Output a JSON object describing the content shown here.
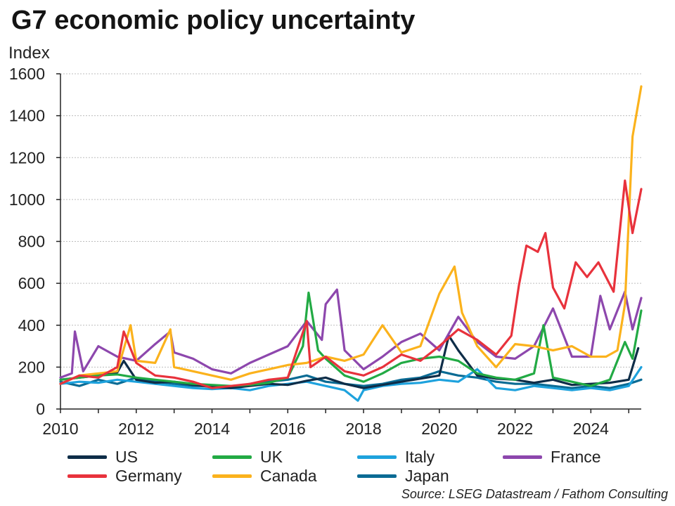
{
  "title": "G7 economic policy uncertainty",
  "source": "Source: LSEG Datastream / Fathom Consulting",
  "chart_data": {
    "type": "line",
    "title": "G7 economic policy uncertainty",
    "ylabel": "Index",
    "xlabel": "",
    "xlim": [
      2010,
      2025.33
    ],
    "ylim": [
      0,
      1600
    ],
    "yticks": [
      "0",
      "200",
      "400",
      "600",
      "800",
      "1000",
      "1200",
      "1400",
      "1600"
    ],
    "xticks": [
      "2010",
      "2012",
      "2014",
      "2016",
      "2018",
      "2020",
      "2022",
      "2024"
    ],
    "grid": true,
    "legend_position": "bottom",
    "series": [
      {
        "name": "US",
        "color": "#0e2d48",
        "x": [
          2010,
          2010.5,
          2011,
          2011.5,
          2011.67,
          2012,
          2012.5,
          2013,
          2013.5,
          2014,
          2014.5,
          2015,
          2015.5,
          2016,
          2016.5,
          2017,
          2017.5,
          2018,
          2018.5,
          2019,
          2019.5,
          2020,
          2020.25,
          2020.5,
          2021,
          2021.5,
          2022,
          2022.5,
          2023,
          2023.5,
          2024,
          2024.5,
          2025,
          2025.25
        ],
        "values": [
          140,
          150,
          160,
          175,
          230,
          140,
          125,
          130,
          115,
          105,
          100,
          110,
          120,
          115,
          135,
          150,
          120,
          100,
          115,
          130,
          145,
          160,
          350,
          280,
          160,
          145,
          140,
          125,
          140,
          115,
          120,
          125,
          140,
          290
        ]
      },
      {
        "name": "Germany",
        "color": "#e8323c",
        "x": [
          2010,
          2010.5,
          2011,
          2011.5,
          2011.67,
          2012,
          2012.5,
          2013,
          2013.5,
          2014,
          2014.5,
          2015,
          2015.5,
          2016,
          2016.5,
          2016.6,
          2017,
          2017.5,
          2018,
          2018.5,
          2019,
          2019.5,
          2020,
          2020.5,
          2021,
          2021.5,
          2021.9,
          2022.1,
          2022.3,
          2022.6,
          2022.8,
          2023,
          2023.3,
          2023.6,
          2023.9,
          2024.2,
          2024.6,
          2024.9,
          2025.1,
          2025.33
        ],
        "values": [
          120,
          160,
          150,
          200,
          370,
          220,
          160,
          150,
          130,
          100,
          110,
          120,
          140,
          150,
          420,
          200,
          250,
          180,
          160,
          200,
          260,
          230,
          300,
          380,
          330,
          260,
          350,
          590,
          780,
          750,
          840,
          580,
          480,
          700,
          630,
          700,
          560,
          1090,
          840,
          1050
        ]
      },
      {
        "name": "UK",
        "color": "#22aa44",
        "x": [
          2010,
          2010.5,
          2011,
          2011.5,
          2012,
          2012.5,
          2013,
          2013.5,
          2014,
          2014.5,
          2015,
          2015.5,
          2016,
          2016.4,
          2016.55,
          2016.8,
          2017,
          2017.5,
          2018,
          2018.5,
          2019,
          2019.5,
          2020,
          2020.5,
          2021,
          2021.5,
          2022,
          2022.5,
          2022.75,
          2023,
          2023.5,
          2024,
          2024.5,
          2024.9,
          2025.1,
          2025.33
        ],
        "values": [
          140,
          150,
          160,
          165,
          150,
          140,
          130,
          120,
          115,
          110,
          115,
          125,
          150,
          300,
          555,
          280,
          240,
          160,
          130,
          170,
          220,
          240,
          250,
          230,
          170,
          150,
          140,
          170,
          400,
          150,
          130,
          110,
          140,
          320,
          240,
          470
        ]
      },
      {
        "name": "Canada",
        "color": "#fbb21c",
        "x": [
          2010,
          2010.5,
          2011,
          2011.5,
          2011.85,
          2012,
          2012.5,
          2012.9,
          2013,
          2013.5,
          2014,
          2014.5,
          2015,
          2015.5,
          2016,
          2016.5,
          2017,
          2017.5,
          2018,
          2018.5,
          2019,
          2019.5,
          2020,
          2020.4,
          2020.6,
          2021,
          2021.5,
          2022,
          2022.5,
          2023,
          2023.5,
          2024,
          2024.4,
          2024.7,
          2024.9,
          2025.1,
          2025.33
        ],
        "values": [
          120,
          160,
          170,
          180,
          400,
          230,
          220,
          380,
          200,
          180,
          160,
          140,
          170,
          190,
          210,
          220,
          250,
          230,
          260,
          400,
          270,
          300,
          550,
          680,
          460,
          300,
          200,
          310,
          300,
          280,
          300,
          250,
          250,
          280,
          500,
          1300,
          1540
        ]
      },
      {
        "name": "Italy",
        "color": "#1ea2dd",
        "x": [
          2010,
          2010.5,
          2011,
          2011.5,
          2012,
          2012.5,
          2013,
          2013.5,
          2014,
          2014.5,
          2015,
          2015.5,
          2016,
          2016.5,
          2017,
          2017.5,
          2017.85,
          2018,
          2018.5,
          2019,
          2019.5,
          2020,
          2020.5,
          2021,
          2021.5,
          2022,
          2022.5,
          2023,
          2023.5,
          2024,
          2024.5,
          2025,
          2025.33
        ],
        "values": [
          120,
          130,
          125,
          140,
          130,
          120,
          110,
          100,
          95,
          100,
          90,
          110,
          120,
          130,
          110,
          90,
          40,
          90,
          110,
          120,
          125,
          140,
          130,
          190,
          100,
          90,
          110,
          100,
          90,
          100,
          90,
          110,
          200
        ]
      },
      {
        "name": "Japan",
        "color": "#0a6b94",
        "x": [
          2010,
          2010.5,
          2011,
          2011.5,
          2012,
          2012.5,
          2013,
          2013.5,
          2014,
          2014.5,
          2015,
          2015.5,
          2016,
          2016.5,
          2017,
          2017.5,
          2018,
          2018.5,
          2019,
          2019.5,
          2020,
          2020.5,
          2021,
          2021.5,
          2022,
          2022.5,
          2023,
          2023.5,
          2024,
          2024.5,
          2025,
          2025.33
        ],
        "values": [
          130,
          110,
          140,
          120,
          150,
          130,
          120,
          110,
          110,
          100,
          120,
          130,
          140,
          160,
          130,
          120,
          110,
          120,
          140,
          150,
          180,
          160,
          150,
          130,
          120,
          120,
          110,
          100,
          110,
          100,
          120,
          140
        ]
      },
      {
        "name": "France",
        "color": "#8d47ad",
        "x": [
          2010,
          2010.3,
          2010.38,
          2010.6,
          2011,
          2011.5,
          2012,
          2012.5,
          2012.9,
          2013,
          2013.5,
          2014,
          2014.5,
          2015,
          2015.5,
          2016,
          2016.5,
          2016.9,
          2017,
          2017.3,
          2017.5,
          2018,
          2018.5,
          2019,
          2019.5,
          2020,
          2020.5,
          2021,
          2021.5,
          2022,
          2022.5,
          2023,
          2023.5,
          2024,
          2024.25,
          2024.5,
          2024.9,
          2025.1,
          2025.33
        ],
        "values": [
          150,
          170,
          370,
          180,
          300,
          250,
          230,
          310,
          370,
          270,
          240,
          190,
          170,
          220,
          260,
          300,
          420,
          330,
          500,
          570,
          280,
          190,
          250,
          320,
          360,
          280,
          440,
          320,
          250,
          240,
          300,
          480,
          250,
          250,
          540,
          380,
          560,
          380,
          530
        ]
      }
    ]
  },
  "legend": [
    {
      "name": "US",
      "color": "#0e2d48"
    },
    {
      "name": "UK",
      "color": "#22aa44"
    },
    {
      "name": "Italy",
      "color": "#1ea2dd"
    },
    {
      "name": "France",
      "color": "#8d47ad"
    },
    {
      "name": "Germany",
      "color": "#e8323c"
    },
    {
      "name": "Canada",
      "color": "#fbb21c"
    },
    {
      "name": "Japan",
      "color": "#0a6b94"
    }
  ]
}
